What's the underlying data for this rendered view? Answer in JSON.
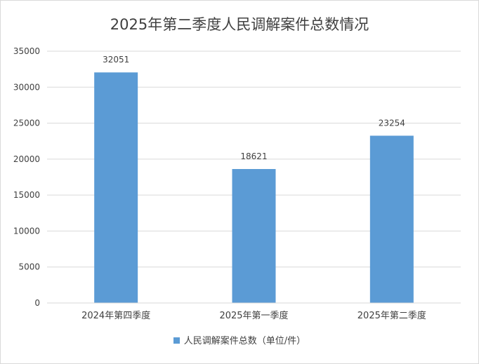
{
  "chart_data": {
    "type": "bar",
    "title": "2025年第二季度人民调解案件总数情况",
    "categories": [
      "2024年第四季度",
      "2025年第一季度",
      "2025年第二季度"
    ],
    "series": [
      {
        "name": "人民调解案件总数（单位/件）",
        "values": [
          32051,
          18621,
          23254
        ]
      }
    ],
    "ylim": [
      0,
      35000
    ],
    "yticks": [
      0,
      5000,
      10000,
      15000,
      20000,
      25000,
      30000,
      35000
    ],
    "grid": true,
    "legend_position": "bottom",
    "bar_color": "#5b9bd5"
  }
}
